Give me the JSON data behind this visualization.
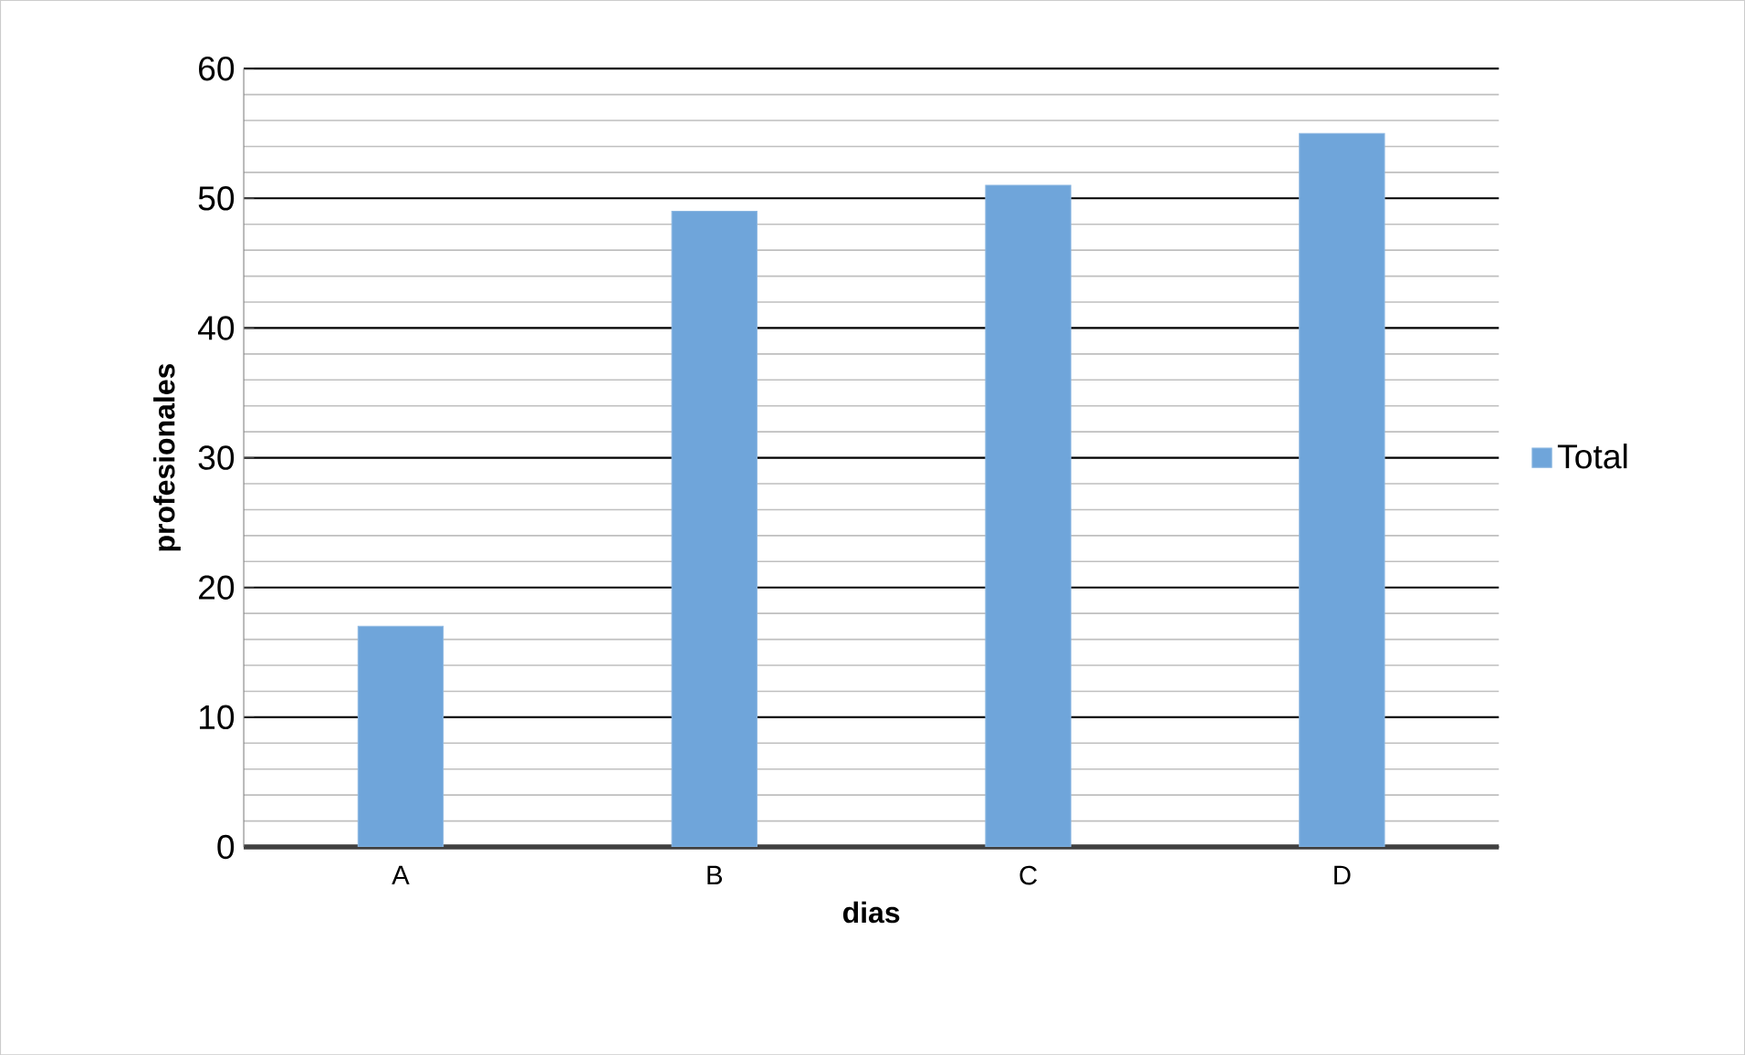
{
  "chart_data": {
    "type": "bar",
    "categories": [
      "A",
      "B",
      "C",
      "D"
    ],
    "series": [
      {
        "name": "Total",
        "color": "#6fa5da",
        "values": [
          17,
          49,
          51,
          55
        ]
      }
    ],
    "xlabel": "dias",
    "ylabel": "profesionales",
    "ylim": [
      0,
      60
    ],
    "yticks": [
      0,
      10,
      20,
      30,
      40,
      50,
      60
    ],
    "grid": "y",
    "legend": "right"
  }
}
